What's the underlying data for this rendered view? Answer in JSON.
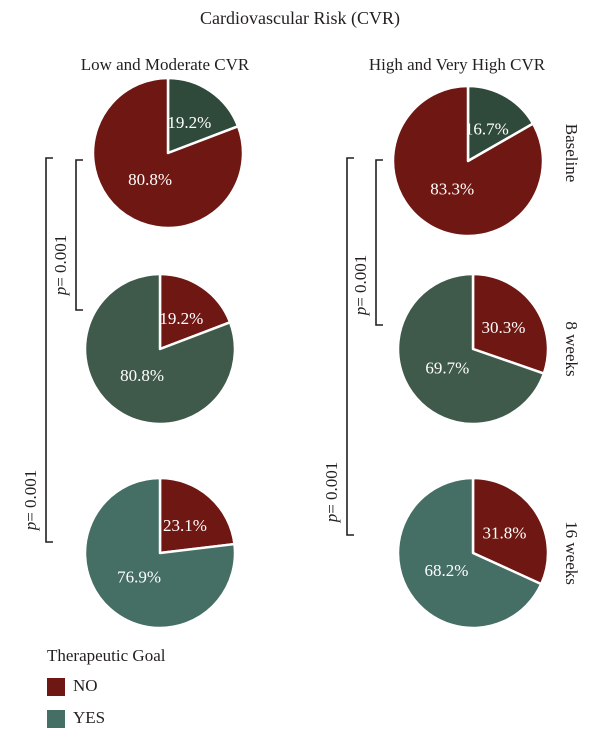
{
  "chart_data": {
    "type": "pie",
    "title": "Cardiovascular Risk (CVR)",
    "groups": [
      {
        "name": "Low and Moderate CVR",
        "timepoints": [
          {
            "label": "Baseline",
            "slices": [
              {
                "category": "YES",
                "value": 19.2,
                "text": "19.2%"
              },
              {
                "category": "NO",
                "value": 80.8,
                "text": "80.8%"
              }
            ]
          },
          {
            "label": "8 weeks",
            "slices": [
              {
                "category": "NO",
                "value": 19.2,
                "text": "19.2%"
              },
              {
                "category": "YES",
                "value": 80.8,
                "text": "80.8%"
              }
            ]
          },
          {
            "label": "16 weeks",
            "slices": [
              {
                "category": "NO",
                "value": 23.1,
                "text": "23.1%"
              },
              {
                "category": "YES",
                "value": 76.9,
                "text": "76.9%"
              }
            ]
          }
        ],
        "comparisons": [
          {
            "from": "Baseline",
            "to": "8 weeks",
            "p_label": "p",
            "p_value": "= 0.001"
          },
          {
            "from": "Baseline",
            "to": "16 weeks",
            "p_label": "p",
            "p_value": "= 0.001"
          }
        ]
      },
      {
        "name": "High and Very High CVR",
        "timepoints": [
          {
            "label": "Baseline",
            "slices": [
              {
                "category": "YES",
                "value": 16.7,
                "text": "16.7%"
              },
              {
                "category": "NO",
                "value": 83.3,
                "text": "83.3%"
              }
            ]
          },
          {
            "label": "8 weeks",
            "slices": [
              {
                "category": "NO",
                "value": 30.3,
                "text": "30.3%"
              },
              {
                "category": "YES",
                "value": 69.7,
                "text": "69.7%"
              }
            ]
          },
          {
            "label": "16 weeks",
            "slices": [
              {
                "category": "NO",
                "value": 31.8,
                "text": "31.8%"
              },
              {
                "category": "YES",
                "value": 68.2,
                "text": "68.2%"
              }
            ]
          }
        ],
        "comparisons": [
          {
            "from": "Baseline",
            "to": "8 weeks",
            "p_label": "p",
            "p_value": "= 0.001"
          },
          {
            "from": "Baseline",
            "to": "16 weeks",
            "p_label": "p",
            "p_value": "= 0.001"
          }
        ]
      }
    ],
    "legend": {
      "title": "Therapeutic Goal",
      "placement": "bottom-left",
      "entries": [
        {
          "category": "NO",
          "label": "NO",
          "color": "#6f1712"
        },
        {
          "category": "YES",
          "label": "YES",
          "color": "#456e65"
        }
      ]
    },
    "colors": {
      "NO": "#6f1712",
      "YES_baseline": "#2f4a3a",
      "YES_8weeks": "#3f5a4b",
      "YES_16weeks": "#456e65",
      "outline": "#ffffff",
      "text": "#231f20"
    }
  }
}
